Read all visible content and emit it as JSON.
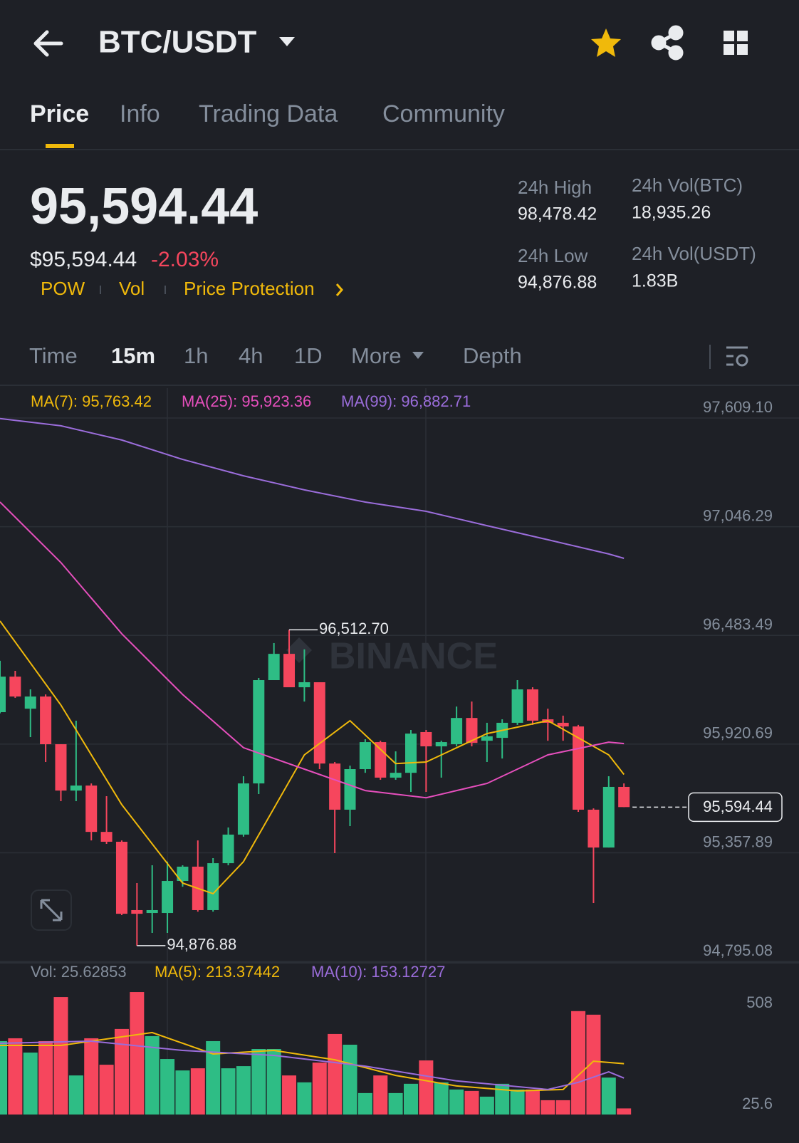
{
  "header": {
    "pair": "BTC/USDT"
  },
  "tabs": [
    "Price",
    "Info",
    "Trading Data",
    "Community"
  ],
  "price": {
    "last": "95,594.44",
    "usd": "$95,594.44",
    "change": "-2.03%",
    "tags": [
      "POW",
      "Vol",
      "Price Protection"
    ]
  },
  "stats": [
    {
      "label": "24h High",
      "value": "98,478.42"
    },
    {
      "label": "24h Low",
      "value": "94,876.88"
    },
    {
      "label": "24h Vol(BTC)",
      "value": "18,935.26"
    },
    {
      "label": "24h Vol(USDT)",
      "value": "1.83B"
    }
  ],
  "intervals": [
    "Time",
    "15m",
    "1h",
    "4h",
    "1D",
    "More",
    "Depth"
  ],
  "chart_data": [
    {
      "type": "candlestick",
      "up_color": "#2ebd85",
      "down_color": "#f6465d",
      "open": [
        96086,
        96270,
        96104,
        96167,
        95920,
        95680,
        95706,
        95466,
        95415,
        95061,
        95046,
        95046,
        95212,
        95286,
        95061,
        95304,
        95452,
        95717,
        96252,
        96388,
        96215,
        96241,
        95820,
        95581,
        95791,
        95931,
        95747,
        95772,
        95983,
        95909,
        95920,
        96056,
        95938,
        95953,
        96031,
        96204,
        96049,
        96031,
        96012,
        95581,
        95385,
        95699
      ],
      "high": [
        96352,
        96300,
        96204,
        96178,
        95920,
        96042,
        95717,
        95651,
        95422,
        95201,
        95293,
        95312,
        95293,
        95422,
        95330,
        95489,
        95754,
        96263,
        96444,
        96512.7,
        96411,
        96241,
        95828,
        95809,
        95946,
        95938,
        95883,
        95994,
        95994,
        95938,
        96115,
        96141,
        96031,
        96049,
        96252,
        96215,
        96104,
        96068,
        96020,
        95588,
        95754,
        95717
      ],
      "low": [
        96080,
        96160,
        95957,
        95828,
        95625,
        95625,
        95422,
        95404,
        95035,
        94876.88,
        94943,
        94943,
        95182,
        95053,
        95053,
        95293,
        95441,
        95662,
        96252,
        96215,
        96141,
        95791,
        95356,
        95496,
        95772,
        95736,
        95736,
        95673,
        95673,
        95747,
        95909,
        95909,
        95828,
        95846,
        96020,
        96020,
        95938,
        95938,
        95570,
        95098,
        95385,
        95594.44
      ],
      "close": [
        96270,
        96167,
        96167,
        95920,
        95680,
        95706,
        95466,
        95415,
        95042,
        95042,
        95061,
        95212,
        95286,
        95061,
        95304,
        95452,
        95717,
        96252,
        96388,
        96215,
        96241,
        95820,
        95581,
        95791,
        95931,
        95747,
        95772,
        95975,
        95909,
        95931,
        96056,
        95927,
        95961,
        96031,
        96204,
        96042,
        96031,
        96012,
        95581,
        95385,
        95699,
        95594.44
      ],
      "series": [
        {
          "name": "MA(7): 95,763.42",
          "color": "#f0b90b",
          "x": [
            0,
            4,
            8,
            12,
            14,
            16,
            20,
            23,
            26,
            28,
            32,
            36,
            40,
            41
          ],
          "values": [
            96558,
            96123,
            95607,
            95201,
            95146,
            95312,
            95865,
            96042,
            95820,
            95828,
            95975,
            96042,
            95865,
            95763.42
          ]
        },
        {
          "name": "MA(25): 95,923.36",
          "color": "#e64fbd",
          "x": [
            0,
            4,
            8,
            12,
            16,
            20,
            24,
            28,
            32,
            36,
            40,
            41
          ],
          "values": [
            97174,
            96861,
            96492,
            96178,
            95902,
            95791,
            95680,
            95643,
            95717,
            95865,
            95931,
            95923.36
          ]
        },
        {
          "name": "MA(99): 96,882.71",
          "color": "#9b6ddb",
          "x": [
            0,
            4,
            8,
            12,
            16,
            20,
            24,
            28,
            32,
            36,
            40,
            41
          ],
          "values": [
            97606,
            97569,
            97495,
            97395,
            97310,
            97237,
            97174,
            97126,
            97052,
            96979,
            96905,
            96882.71
          ]
        }
      ],
      "ylim": [
        94788,
        97764
      ],
      "yticks": [
        {
          "value": 97609.1,
          "label": "97,609.10"
        },
        {
          "value": 97046.29,
          "label": "97,046.29"
        },
        {
          "value": 96483.49,
          "label": "96,483.49"
        },
        {
          "value": 95920.69,
          "label": "95,920.69"
        },
        {
          "value": 95357.89,
          "label": "95,357.89"
        },
        {
          "value": 94795.08,
          "label": "94,795.08"
        }
      ],
      "grid": true,
      "last_price": {
        "value": 95594.44,
        "label": "95,594.44"
      },
      "annotations": [
        {
          "value": 96512.7,
          "label": "96,512.70"
        },
        {
          "value": 94876.88,
          "label": "94,876.88"
        }
      ],
      "watermark": "BINANCE"
    },
    {
      "type": "bar",
      "label": "Vol: 25.62853",
      "values": [
        308,
        320,
        260,
        308,
        493,
        164,
        320,
        209,
        359,
        514,
        329,
        233,
        185,
        194,
        308,
        194,
        203,
        275,
        275,
        164,
        135,
        218,
        338,
        293,
        90,
        164,
        90,
        129,
        227,
        135,
        105,
        99,
        75,
        129,
        105,
        105,
        60,
        60,
        434,
        419,
        155,
        25.62853
      ],
      "series": [
        {
          "name": "MA(5): 213.37442",
          "color": "#f0b90b",
          "x": [
            0,
            4,
            10,
            14,
            18,
            22,
            26,
            30,
            34,
            37,
            39,
            41
          ],
          "values": [
            290,
            290,
            344,
            254,
            269,
            230,
            164,
            120,
            99,
            105,
            224,
            213.37442
          ]
        },
        {
          "name": "MA(10): 153.12727",
          "color": "#9b6ddb",
          "x": [
            0,
            6,
            12,
            18,
            24,
            30,
            36,
            38,
            40,
            41
          ],
          "values": [
            299,
            308,
            269,
            248,
            203,
            141,
            105,
            135,
            179,
            153.12727
          ]
        }
      ],
      "ylim": [
        0,
        544
      ],
      "yticks": [
        508,
        25.6
      ]
    }
  ]
}
